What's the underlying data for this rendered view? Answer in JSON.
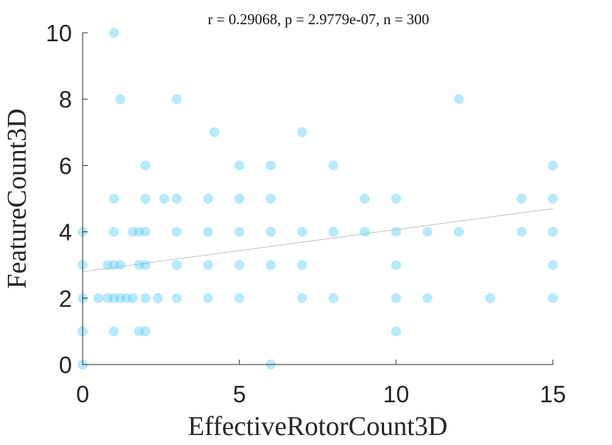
{
  "chart_data": {
    "type": "scatter",
    "title": "r = 0.29068, p = 2.9779e-07, n = 300",
    "xlabel": "EffectiveRotorCount3D",
    "ylabel": "FeatureCount3D",
    "xlim": [
      0,
      15
    ],
    "ylim": [
      0,
      10
    ],
    "xticks": [
      "0",
      "5",
      "10",
      "15"
    ],
    "yticks": [
      "0",
      "2",
      "4",
      "6",
      "8",
      "10"
    ],
    "grid": false,
    "point_color": "#4cc9f8",
    "trend_color": "#bfbfbf",
    "trendline": {
      "x": [
        0,
        15
      ],
      "y": [
        2.8,
        4.7
      ]
    },
    "points": [
      [
        1,
        10
      ],
      [
        1.2,
        8
      ],
      [
        3,
        8
      ],
      [
        4.2,
        7
      ],
      [
        7,
        7
      ],
      [
        12,
        8
      ],
      [
        2,
        6
      ],
      [
        5,
        6
      ],
      [
        6,
        6
      ],
      [
        8,
        6
      ],
      [
        15,
        6
      ],
      [
        1,
        5
      ],
      [
        2,
        5
      ],
      [
        2.6,
        5
      ],
      [
        3,
        5
      ],
      [
        4,
        5
      ],
      [
        5,
        5
      ],
      [
        6,
        5
      ],
      [
        9,
        5
      ],
      [
        10,
        5
      ],
      [
        14,
        5
      ],
      [
        15,
        5
      ],
      [
        0,
        4
      ],
      [
        1,
        4
      ],
      [
        1.6,
        4
      ],
      [
        1.8,
        4
      ],
      [
        2,
        4
      ],
      [
        3,
        4
      ],
      [
        4,
        4
      ],
      [
        5,
        4
      ],
      [
        6,
        4
      ],
      [
        7,
        4
      ],
      [
        8,
        4
      ],
      [
        9,
        4
      ],
      [
        10,
        4
      ],
      [
        11,
        4
      ],
      [
        12,
        4
      ],
      [
        14,
        4
      ],
      [
        15,
        4
      ],
      [
        0,
        3
      ],
      [
        0.8,
        3
      ],
      [
        1,
        3
      ],
      [
        1.2,
        3
      ],
      [
        1.8,
        3
      ],
      [
        2,
        3
      ],
      [
        3,
        3
      ],
      [
        4,
        3
      ],
      [
        5,
        3
      ],
      [
        6,
        3
      ],
      [
        7,
        3
      ],
      [
        10,
        3
      ],
      [
        15,
        3
      ],
      [
        0,
        2
      ],
      [
        0.5,
        2
      ],
      [
        0.8,
        2
      ],
      [
        1,
        2
      ],
      [
        1.2,
        2
      ],
      [
        1.4,
        2
      ],
      [
        1.6,
        2
      ],
      [
        2,
        2
      ],
      [
        2.4,
        2
      ],
      [
        3,
        2
      ],
      [
        4,
        2
      ],
      [
        5,
        2
      ],
      [
        7,
        2
      ],
      [
        8,
        2
      ],
      [
        10,
        2
      ],
      [
        11,
        2
      ],
      [
        13,
        2
      ],
      [
        15,
        2
      ],
      [
        0,
        1
      ],
      [
        1,
        1
      ],
      [
        1.8,
        1
      ],
      [
        2,
        1
      ],
      [
        10,
        1
      ],
      [
        0,
        0
      ],
      [
        6,
        0
      ]
    ]
  }
}
